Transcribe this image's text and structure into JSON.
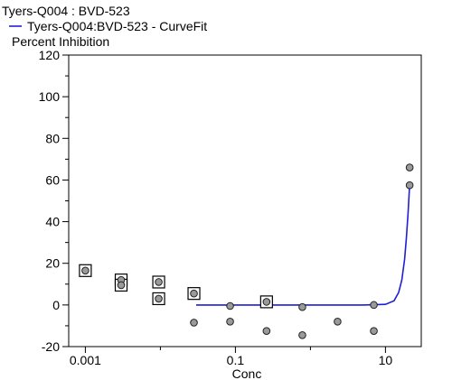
{
  "chart_data": {
    "type": "scatter",
    "title": "Tyers-Q004  : BVD-523",
    "legend": [
      {
        "label": "Tyers-Q004:BVD-523 - CurveFit",
        "color": "#1f1fd6"
      }
    ],
    "ylabel": "Percent Inhibition",
    "xlabel": "Conc",
    "xscale": "log",
    "xlim": [
      0.0006,
      30
    ],
    "ylim": [
      -20,
      120
    ],
    "xticks": [
      0.001,
      0.1,
      10
    ],
    "xtick_labels": [
      "0.001",
      "0.1",
      "10"
    ],
    "yticks": [
      -20,
      0,
      20,
      40,
      60,
      80,
      100,
      120
    ],
    "ytick_labels": [
      "-20",
      "0",
      "20",
      "40",
      "60",
      "80",
      "100",
      "120"
    ],
    "grid": false,
    "points": [
      {
        "x": 0.001,
        "y": 16.5,
        "excluded": true
      },
      {
        "x": 0.001,
        "y": 16.5,
        "excluded": false
      },
      {
        "x": 0.003,
        "y": 12,
        "excluded": true
      },
      {
        "x": 0.003,
        "y": 9.5,
        "excluded": true
      },
      {
        "x": 0.003,
        "y": 12,
        "excluded": false
      },
      {
        "x": 0.003,
        "y": 9.5,
        "excluded": false
      },
      {
        "x": 0.0095,
        "y": 11,
        "excluded": true
      },
      {
        "x": 0.0095,
        "y": 3,
        "excluded": true
      },
      {
        "x": 0.0095,
        "y": 11,
        "excluded": false
      },
      {
        "x": 0.0095,
        "y": 3,
        "excluded": false
      },
      {
        "x": 0.028,
        "y": 5.5,
        "excluded": true
      },
      {
        "x": 0.028,
        "y": 5.5,
        "excluded": false
      },
      {
        "x": 0.028,
        "y": -8.5,
        "excluded": false
      },
      {
        "x": 0.085,
        "y": -0.5,
        "excluded": false
      },
      {
        "x": 0.085,
        "y": -8,
        "excluded": false
      },
      {
        "x": 0.26,
        "y": 1.5,
        "excluded": true
      },
      {
        "x": 0.26,
        "y": 1.5,
        "excluded": false
      },
      {
        "x": 0.26,
        "y": -12.5,
        "excluded": false
      },
      {
        "x": 0.78,
        "y": -1,
        "excluded": false
      },
      {
        "x": 0.78,
        "y": -14.5,
        "excluded": false
      },
      {
        "x": 2.3,
        "y": -8,
        "excluded": false
      },
      {
        "x": 7.0,
        "y": 0,
        "excluded": false
      },
      {
        "x": 7.0,
        "y": -12.5,
        "excluded": false
      },
      {
        "x": 21,
        "y": 66,
        "excluded": false
      },
      {
        "x": 21,
        "y": 57.5,
        "excluded": false
      }
    ],
    "curve": {
      "color": "#1f1fd6",
      "x": [
        0.03,
        1,
        5,
        10,
        13,
        15,
        16.5,
        18,
        19,
        20,
        21
      ],
      "y": [
        0,
        0,
        0,
        0.3,
        2,
        6,
        12,
        22,
        32,
        44,
        57.5
      ]
    }
  }
}
